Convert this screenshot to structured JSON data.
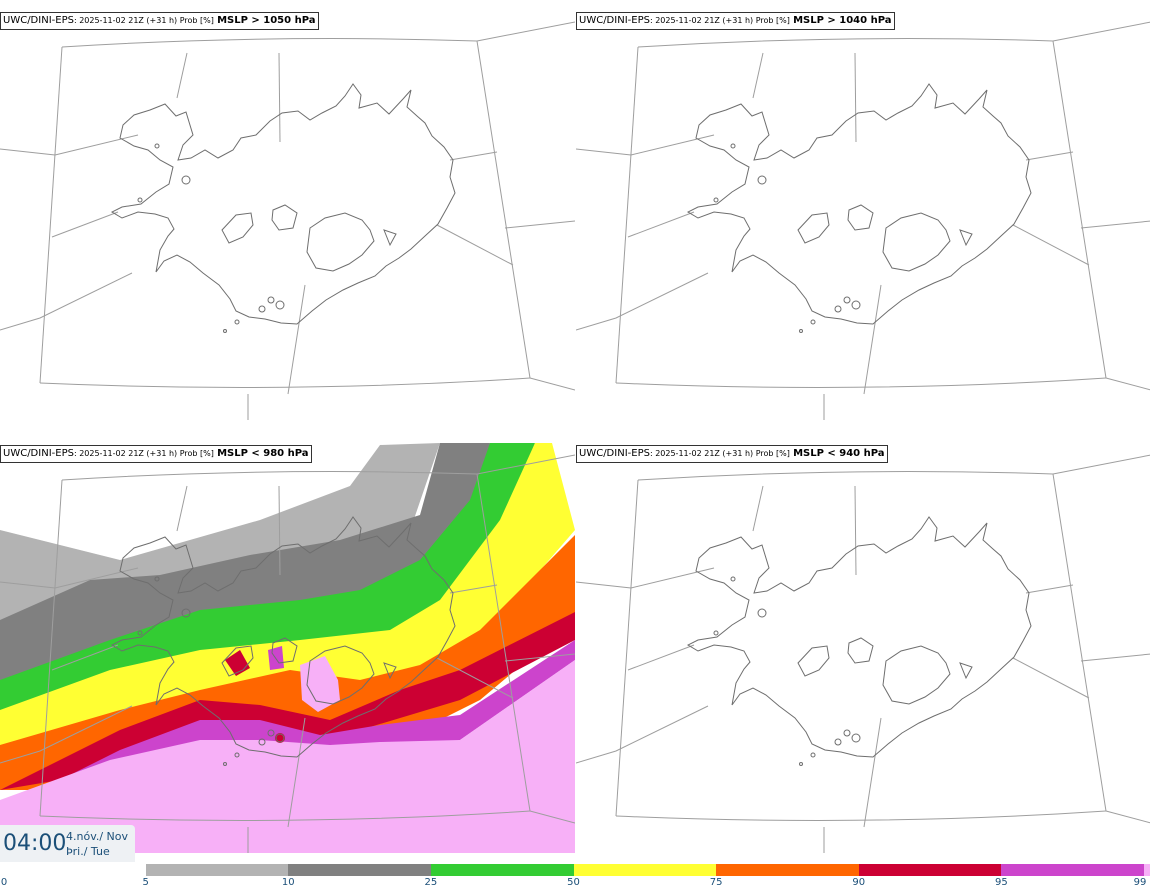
{
  "panels": [
    {
      "model": "UWC/DINI-EPS",
      "meta": ": 2025-11-02 21Z (+31 h) Prob [%]",
      "threshold": "MSLP > 1050 hPa",
      "filled": false
    },
    {
      "model": "UWC/DINI-EPS",
      "meta": ": 2025-11-02 21Z (+31 h) Prob [%]",
      "threshold": "MSLP > 1040 hPa",
      "filled": false
    },
    {
      "model": "UWC/DINI-EPS",
      "meta": ": 2025-11-02 21Z (+31 h) Prob [%]",
      "threshold": "MSLP < 980 hPa",
      "filled": true
    },
    {
      "model": "UWC/DINI-EPS",
      "meta": ": 2025-11-02 21Z (+31 h) Prob [%]",
      "threshold": "MSLP < 940 hPa",
      "filled": false
    }
  ],
  "valid_time": {
    "time": "04:00",
    "date_line1": "4.nóv./ Nov",
    "date_line2": "Þri./ Tue"
  },
  "colorbar": {
    "ticks": [
      "0",
      "5",
      "10",
      "25",
      "50",
      "75",
      "90",
      "95",
      "99"
    ],
    "bins": [
      {
        "from": 5,
        "to": 10,
        "color": "#b3b3b3"
      },
      {
        "from": 10,
        "to": 25,
        "color": "#808080"
      },
      {
        "from": 25,
        "to": 50,
        "color": "#33cc33"
      },
      {
        "from": 50,
        "to": 75,
        "color": "#ffff33"
      },
      {
        "from": 75,
        "to": 90,
        "color": "#ff6600"
      },
      {
        "from": 90,
        "to": 95,
        "color": "#cc0033"
      },
      {
        "from": 95,
        "to": 99,
        "color": "#cc44cc"
      },
      {
        "from": 99,
        "to": 100,
        "color": "#f7b0f7"
      }
    ]
  }
}
